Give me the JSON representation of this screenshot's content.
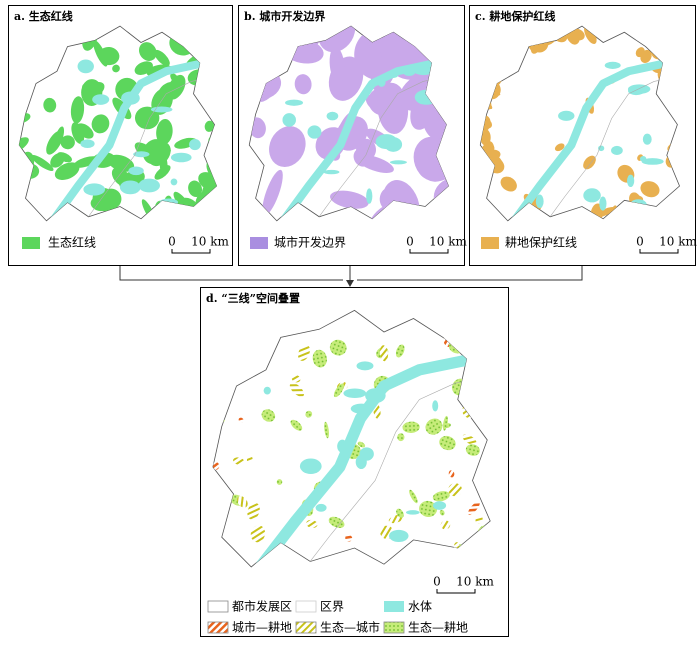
{
  "panels": [
    {
      "title": "a. 生态红线",
      "legend": "生态红线",
      "scale": [
        "0",
        "10 km"
      ]
    },
    {
      "title": "b. 城市开发边界",
      "legend": "城市开发边界",
      "scale": [
        "0",
        "10 km"
      ]
    },
    {
      "title": "c. 耕地保护红线",
      "legend": "耕地保护红线",
      "scale": [
        "0",
        "10 km"
      ]
    }
  ],
  "panel_d": {
    "title": "d. “三线”空间叠置",
    "scale": [
      "0",
      "10 km"
    ],
    "legend": [
      "都市发展区",
      "区界",
      "水体",
      "城市—耕地",
      "生态—城市",
      "生态—耕地"
    ]
  }
}
